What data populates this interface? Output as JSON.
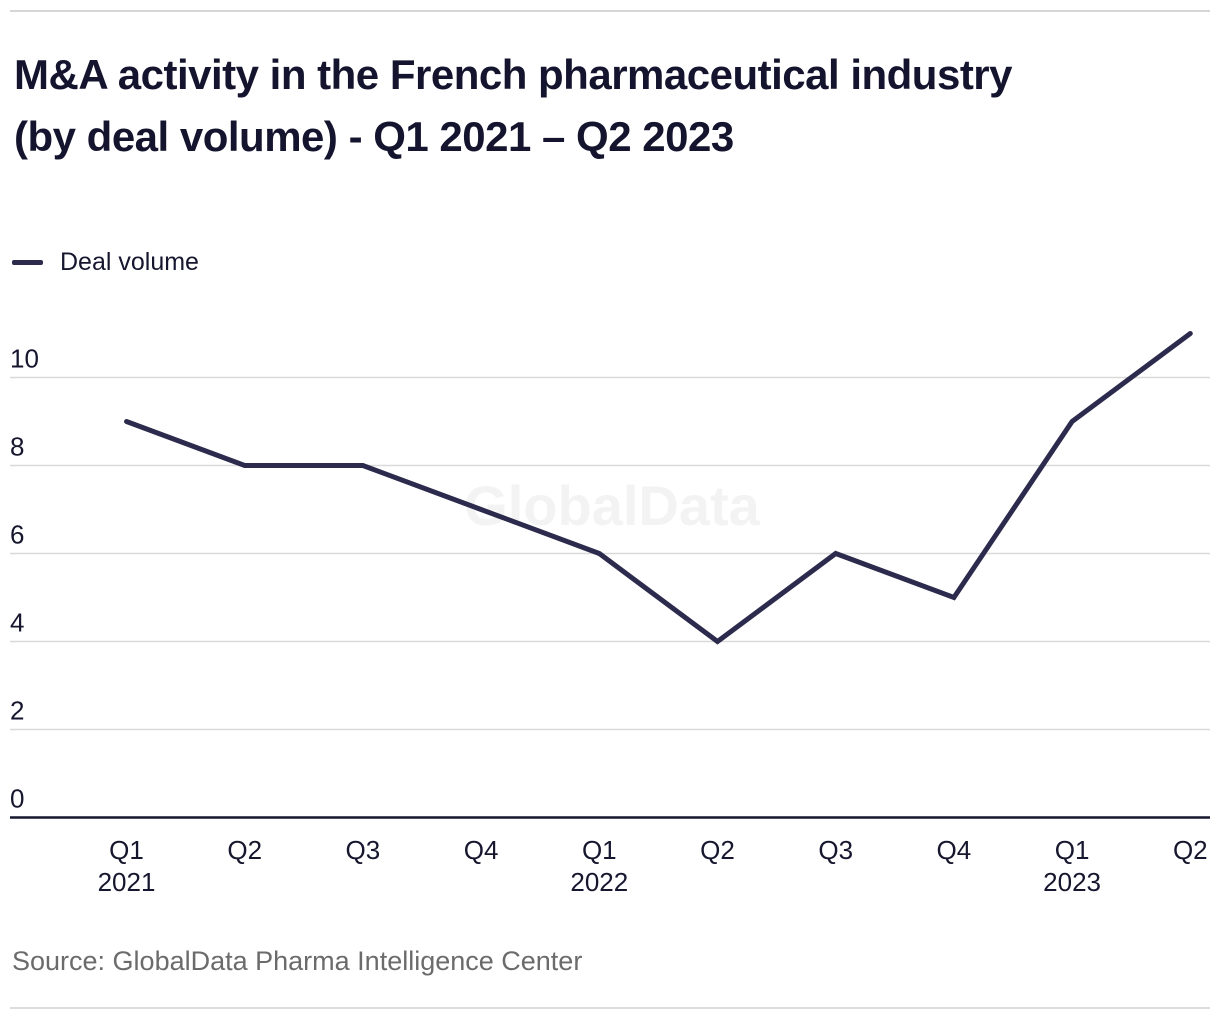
{
  "header": {
    "title_line1": "M&A activity in the French pharmaceutical industry",
    "title_line2": "(by deal volume) - Q1 2021 – Q2 2023"
  },
  "legend": {
    "label": "Deal volume",
    "swatch_color": "#2d2b4d"
  },
  "watermark": "GlobalData",
  "source": {
    "text": "Source: GlobalData Pharma Intelligence Center"
  },
  "colors": {
    "line": "#2d2b4d",
    "text_dark": "#16162e",
    "gridline": "#d9d9d9",
    "axis_line": "#16162e",
    "source_text": "#6b6b6b",
    "watermark": "#f3f3f3",
    "background": "#ffffff"
  },
  "chart_data": {
    "type": "line",
    "title": "M&A activity in the French pharmaceutical industry (by deal volume) - Q1 2021 – Q2 2023",
    "categories": [
      "Q1 2021",
      "Q2 2021",
      "Q3 2021",
      "Q4 2021",
      "Q1 2022",
      "Q2 2022",
      "Q3 2022",
      "Q4 2022",
      "Q1 2023",
      "Q2 2023"
    ],
    "x_tick_labels": [
      "Q1",
      "Q2",
      "Q3",
      "Q4",
      "Q1",
      "Q2",
      "Q3",
      "Q4",
      "Q1",
      "Q2"
    ],
    "x_year_labels": [
      {
        "index": 0,
        "label": "2021"
      },
      {
        "index": 4,
        "label": "2022"
      },
      {
        "index": 8,
        "label": "2023"
      }
    ],
    "series": [
      {
        "name": "Deal volume",
        "values": [
          9,
          8,
          8,
          7,
          6,
          4,
          6,
          5,
          9,
          11
        ]
      }
    ],
    "y_ticks": [
      0,
      2,
      4,
      6,
      8,
      10
    ],
    "ylim": [
      0,
      11
    ],
    "xlabel": "",
    "ylabel": "",
    "grid": "horizontal",
    "legend_position": "top-left"
  }
}
